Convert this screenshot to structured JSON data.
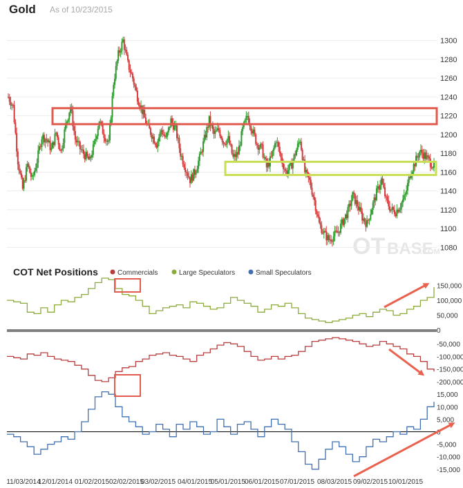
{
  "header": {
    "title": "Gold",
    "subtitle": "As of 10/23/2015"
  },
  "watermark": {
    "text": "OT",
    "suffix": "BASE",
    "domain": ".COM"
  },
  "cot": {
    "title": "COT Net Positions"
  },
  "colors": {
    "up": "#2e9a2e",
    "down": "#d23b3b",
    "commercials": "#b83c3c",
    "large": "#8aaa3a",
    "small": "#3f6fb0",
    "resistance_box": "#e05a4e",
    "support_box": "#c9dd55",
    "arrow": "#e8624f",
    "callout": "#e05a4e"
  },
  "chart_data": [
    {
      "type": "candlestick",
      "title": "Gold",
      "ylim": [
        1070,
        1310
      ],
      "y_ticks": [
        1080,
        1100,
        1120,
        1140,
        1160,
        1180,
        1200,
        1220,
        1240,
        1260,
        1280,
        1300
      ],
      "x_labels": [
        "11/03/2014",
        "12/01/2014",
        "01/02/2015",
        "02/02/2015",
        "03/02/2015",
        "04/01/2015",
        "05/01/2015",
        "06/01/2015",
        "07/01/2015",
        "08/03/2015",
        "09/02/2015",
        "10/01/2015"
      ],
      "zones": [
        {
          "name": "resistance",
          "y_range": [
            1211,
            1228
          ],
          "x_range": [
            "12/01/2014",
            "10/23/2015"
          ]
        },
        {
          "name": "support",
          "y_range": [
            1157,
            1171
          ],
          "x_range": [
            "05/01/2015",
            "10/23/2015"
          ]
        }
      ],
      "weekly_closes": [
        1240,
        1230,
        1172,
        1142,
        1168,
        1152,
        1172,
        1198,
        1195,
        1184,
        1202,
        1182,
        1210,
        1230,
        1195,
        1185,
        1178,
        1172,
        1190,
        1215,
        1200,
        1190,
        1255,
        1285,
        1300,
        1275,
        1260,
        1240,
        1225,
        1210,
        1200,
        1190,
        1205,
        1195,
        1215,
        1205,
        1180,
        1165,
        1152,
        1160,
        1175,
        1195,
        1215,
        1200,
        1205,
        1192,
        1195,
        1175,
        1180,
        1205,
        1220,
        1205,
        1190,
        1185,
        1165,
        1175,
        1195,
        1175,
        1160,
        1165,
        1180,
        1195,
        1160,
        1150,
        1130,
        1105,
        1095,
        1088,
        1092,
        1097,
        1108,
        1118,
        1135,
        1125,
        1112,
        1105,
        1122,
        1138,
        1152,
        1130,
        1120,
        1118,
        1125,
        1135,
        1158,
        1170,
        1182,
        1178,
        1172,
        1166
      ]
    },
    {
      "type": "line",
      "title": "COT Net Positions",
      "series": [
        {
          "name": "Commercials",
          "y_ticks": [
            -50000,
            -100000,
            -150000,
            -200000
          ],
          "values": [
            -100000,
            -105000,
            -110000,
            -90000,
            -95000,
            -85000,
            -100000,
            -110000,
            -115000,
            -120000,
            -135000,
            -150000,
            -175000,
            -195000,
            -200000,
            -185000,
            -160000,
            -145000,
            -140000,
            -120000,
            -110000,
            -95000,
            -90000,
            -85000,
            -95000,
            -100000,
            -110000,
            -120000,
            -95000,
            -85000,
            -70000,
            -55000,
            -45000,
            -50000,
            -60000,
            -80000,
            -100000,
            -115000,
            -110000,
            -100000,
            -110000,
            -100000,
            -95000,
            -80000,
            -60000,
            -40000,
            -35000,
            -30000,
            -25000,
            -30000,
            -35000,
            -40000,
            -50000,
            -60000,
            -55000,
            -40000,
            -50000,
            -60000,
            -70000,
            -90000,
            -100000,
            -120000,
            -150000,
            -160000
          ]
        },
        {
          "name": "Large Speculators",
          "y_ticks": [
            0,
            50000,
            100000,
            150000
          ],
          "values": [
            100000,
            95000,
            90000,
            60000,
            55000,
            75000,
            60000,
            85000,
            100000,
            95000,
            110000,
            120000,
            140000,
            160000,
            175000,
            170000,
            140000,
            120000,
            115000,
            100000,
            80000,
            55000,
            65000,
            75000,
            80000,
            85000,
            75000,
            95000,
            90000,
            80000,
            70000,
            75000,
            90000,
            110000,
            100000,
            90000,
            80000,
            60000,
            70000,
            85000,
            80000,
            90000,
            75000,
            55000,
            40000,
            35000,
            30000,
            25000,
            30000,
            35000,
            40000,
            50000,
            55000,
            45000,
            60000,
            70000,
            65000,
            50000,
            55000,
            70000,
            80000,
            100000,
            110000,
            145000
          ]
        },
        {
          "name": "Small Speculators",
          "y_ticks": [
            -15000,
            -10000,
            -5000,
            0,
            5000,
            10000,
            15000
          ],
          "values": [
            -1000,
            -2000,
            -4000,
            -6000,
            -9000,
            -7000,
            -5000,
            -4000,
            -2000,
            -3000,
            0,
            4000,
            9000,
            14000,
            16000,
            15000,
            10000,
            6000,
            4000,
            2000,
            -1000,
            0,
            3000,
            1000,
            -2000,
            3000,
            1000,
            4000,
            2000,
            -1000,
            0,
            5000,
            2000,
            -1000,
            3000,
            4000,
            1000,
            -2000,
            2000,
            5000,
            3000,
            1000,
            -4000,
            -8000,
            -13000,
            -15000,
            -11000,
            -7000,
            -4000,
            -6000,
            -9000,
            -12000,
            -10000,
            -6000,
            -3000,
            -4000,
            -2000,
            0,
            -1000,
            2000,
            1000,
            5000,
            10000,
            12000
          ]
        }
      ],
      "legend": [
        "Commercials",
        "Large Speculators",
        "Small Speculators"
      ]
    }
  ]
}
